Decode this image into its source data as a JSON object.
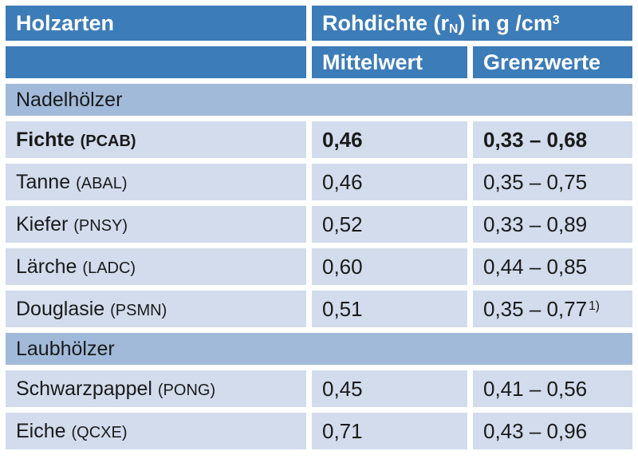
{
  "colors": {
    "header_bg": "#3c7cb8",
    "header_text": "#ffffff",
    "section_row_bg": "#a2bada",
    "data_row_bg": "#d2dcec",
    "body_text": "#1a1a1a",
    "page_bg": "#ffffff"
  },
  "table": {
    "header": {
      "holzarten": "Holzarten",
      "rohdichte": {
        "p1": "Rohdichte (r",
        "sub": "N",
        "p2": ") in g /cm",
        "sup": "3"
      },
      "mittelwert": "Mittelwert",
      "grenzwerte": "Grenzwerte"
    },
    "rows": [
      {
        "type": "section",
        "label": "Nadelhölzer"
      },
      {
        "type": "data",
        "name": "Fichte",
        "code": "(PCAB)",
        "mittelwert": "0,46",
        "grenzwerte": "0,33 – 0,68",
        "bold": true
      },
      {
        "type": "data",
        "name": "Tanne",
        "code": "(ABAL)",
        "mittelwert": "0,46",
        "grenzwerte": "0,35 – 0,75"
      },
      {
        "type": "data",
        "name": "Kiefer",
        "code": "(PNSY)",
        "mittelwert": "0,52",
        "grenzwerte": "0,33 – 0,89"
      },
      {
        "type": "data",
        "name": "Lärche",
        "code": "(LADC)",
        "mittelwert": "0,60",
        "grenzwerte": "0,44 – 0,85"
      },
      {
        "type": "data",
        "name": "Douglasie",
        "code": "(PSMN)",
        "mittelwert": "0,51",
        "grenzwerte": "0,35 – 0,77",
        "note": "1)"
      },
      {
        "type": "section",
        "label": "Laubhölzer"
      },
      {
        "type": "data",
        "name": "Schwarzpappel",
        "code": "(PONG)",
        "mittelwert": "0,45",
        "grenzwerte": "0,41 – 0,56"
      },
      {
        "type": "data",
        "name": "Eiche",
        "code": "(QCXE)",
        "mittelwert": "0,71",
        "grenzwerte": "0,43 – 0,96"
      }
    ]
  }
}
